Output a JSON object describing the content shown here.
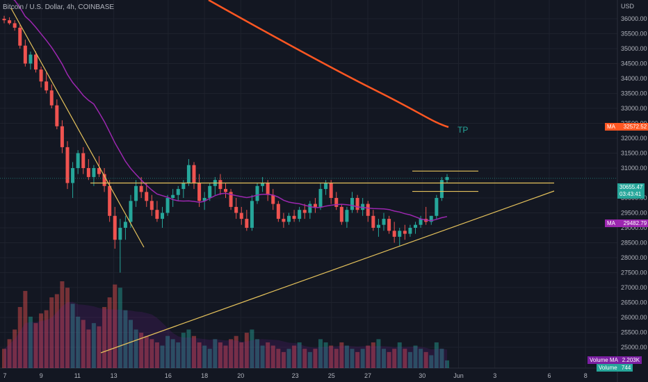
{
  "header": {
    "title": "Bitcoin / U.S. Dollar, 4h, COINBASE"
  },
  "axis": {
    "currency": "USD",
    "price_ticks": [
      "36000.00",
      "35500.00",
      "35000.00",
      "34500.00",
      "34000.00",
      "33500.00",
      "33000.00",
      "32500.00",
      "32000.00",
      "31500.00",
      "31000.00",
      "30000.00",
      "29500.00",
      "29000.00",
      "28500.00",
      "28000.00",
      "27500.00",
      "27000.00",
      "26500.00",
      "26000.00",
      "25500.00",
      "25000.00"
    ],
    "date_ticks": [
      "7",
      "9",
      "11",
      "13",
      "16",
      "18",
      "20",
      "23",
      "25",
      "27",
      "30",
      "Jun",
      "3",
      "6",
      "8"
    ]
  },
  "badges": {
    "ma_long_label": "MA",
    "ma_long_value": "32572.52",
    "price_value": "30655.47",
    "countdown": "03:43:41",
    "ma_short_label": "MA",
    "ma_short_value": "29482.79",
    "vol_ma_label": "Volume MA",
    "vol_ma_value": "2.203K",
    "vol_label": "Volume",
    "vol_value": "744"
  },
  "annotation": {
    "tp": "TP"
  },
  "colors": {
    "up": "#26a69a",
    "down": "#ef5350",
    "ma_long": "#ff5722",
    "ma_short": "#9c27b0",
    "trendline": "#e6c35c",
    "background": "#131722",
    "grid": "#1e222d"
  },
  "chart_data": {
    "type": "candlestick",
    "interval": "4h",
    "ylim": [
      25000,
      36300
    ],
    "grid": true,
    "candles_ohlc": [
      [
        36000,
        36100,
        35850,
        35950
      ],
      [
        35950,
        36050,
        35800,
        35850
      ],
      [
        35850,
        35950,
        35600,
        35700
      ],
      [
        35700,
        35800,
        35000,
        35100
      ],
      [
        35100,
        35300,
        34400,
        34500
      ],
      [
        34500,
        34900,
        34300,
        34800
      ],
      [
        34800,
        34900,
        34200,
        34300
      ],
      [
        34300,
        34400,
        33700,
        33900
      ],
      [
        33900,
        34200,
        33500,
        33600
      ],
      [
        33600,
        33800,
        33000,
        33100
      ],
      [
        33100,
        33300,
        32300,
        32400
      ],
      [
        32400,
        32600,
        31500,
        31700
      ],
      [
        31700,
        31900,
        30300,
        30500
      ],
      [
        30500,
        31200,
        30000,
        31000
      ],
      [
        31000,
        31600,
        30800,
        31500
      ],
      [
        31500,
        31700,
        30800,
        31000
      ],
      [
        31000,
        31300,
        30600,
        30700
      ],
      [
        30700,
        31100,
        30400,
        31000
      ],
      [
        31000,
        31400,
        30700,
        30800
      ],
      [
        30800,
        31000,
        30200,
        30400
      ],
      [
        30400,
        30600,
        29200,
        29400
      ],
      [
        29400,
        29700,
        28300,
        28600
      ],
      [
        28600,
        29300,
        27500,
        29000
      ],
      [
        29000,
        29400,
        28600,
        29200
      ],
      [
        29200,
        30100,
        29000,
        29900
      ],
      [
        29900,
        30600,
        29700,
        30400
      ],
      [
        30400,
        30700,
        30000,
        30200
      ],
      [
        30200,
        30500,
        29700,
        29900
      ],
      [
        29900,
        30100,
        29400,
        29600
      ],
      [
        29600,
        29900,
        29200,
        29300
      ],
      [
        29300,
        29700,
        29000,
        29500
      ],
      [
        29500,
        30100,
        29400,
        30000
      ],
      [
        30000,
        30300,
        29700,
        30100
      ],
      [
        30100,
        30400,
        29900,
        30300
      ],
      [
        30300,
        30600,
        30000,
        30500
      ],
      [
        30500,
        31300,
        30400,
        31100
      ],
      [
        31100,
        31200,
        30300,
        30500
      ],
      [
        30500,
        30800,
        29700,
        29900
      ],
      [
        29900,
        30200,
        29600,
        30000
      ],
      [
        30000,
        30500,
        29900,
        30400
      ],
      [
        30400,
        30700,
        30100,
        30600
      ],
      [
        30600,
        30800,
        30100,
        30300
      ],
      [
        30300,
        30500,
        30000,
        30200
      ],
      [
        30200,
        30300,
        29600,
        29700
      ],
      [
        29700,
        30000,
        29300,
        29500
      ],
      [
        29500,
        29700,
        29100,
        29300
      ],
      [
        29300,
        29600,
        28900,
        29000
      ],
      [
        29000,
        30100,
        28900,
        29900
      ],
      [
        29900,
        30500,
        29800,
        30400
      ],
      [
        30400,
        30700,
        30200,
        30500
      ],
      [
        30500,
        30600,
        29900,
        30100
      ],
      [
        30100,
        30300,
        29600,
        29800
      ],
      [
        29800,
        29900,
        29200,
        29300
      ],
      [
        29300,
        29500,
        29000,
        29200
      ],
      [
        29200,
        29500,
        29100,
        29400
      ],
      [
        29400,
        29600,
        29200,
        29300
      ],
      [
        29300,
        29700,
        29200,
        29600
      ],
      [
        29600,
        29800,
        29300,
        29500
      ],
      [
        29500,
        29900,
        29300,
        29800
      ],
      [
        29800,
        30000,
        29500,
        29700
      ],
      [
        29700,
        30500,
        29600,
        30300
      ],
      [
        30300,
        30600,
        30100,
        30500
      ],
      [
        30500,
        30600,
        29800,
        30000
      ],
      [
        30000,
        30200,
        29600,
        29700
      ],
      [
        29700,
        29800,
        29100,
        29200
      ],
      [
        29200,
        29700,
        29000,
        29600
      ],
      [
        29600,
        30200,
        29500,
        30000
      ],
      [
        30000,
        30100,
        29500,
        29600
      ],
      [
        29600,
        30000,
        29400,
        29800
      ],
      [
        29800,
        29900,
        29200,
        29400
      ],
      [
        29400,
        29600,
        28900,
        29000
      ],
      [
        29000,
        29300,
        28700,
        29100
      ],
      [
        29100,
        29500,
        28900,
        29300
      ],
      [
        29300,
        29400,
        28800,
        28900
      ],
      [
        28900,
        29200,
        28500,
        28700
      ],
      [
        28700,
        29000,
        28400,
        28900
      ],
      [
        28900,
        29100,
        28600,
        28800
      ],
      [
        28800,
        29100,
        28700,
        29000
      ],
      [
        29000,
        29200,
        28800,
        29100
      ],
      [
        29100,
        29400,
        29000,
        29300
      ],
      [
        29300,
        29700,
        29100,
        29200
      ],
      [
        29200,
        29400,
        29100,
        29400
      ],
      [
        29400,
        30100,
        29300,
        30000
      ],
      [
        30000,
        30700,
        29900,
        30600
      ],
      [
        30600,
        30800,
        30500,
        30700
      ]
    ],
    "volume_ma_value": 2203,
    "volume_last": 744,
    "ma_long_last": 32572.52,
    "ma_short_last": 29482.79,
    "last_price": 30655.47,
    "resistance_level": 30500,
    "tp_box": [
      30900,
      30220
    ],
    "candles_per_day": 6,
    "first_day": 7
  }
}
